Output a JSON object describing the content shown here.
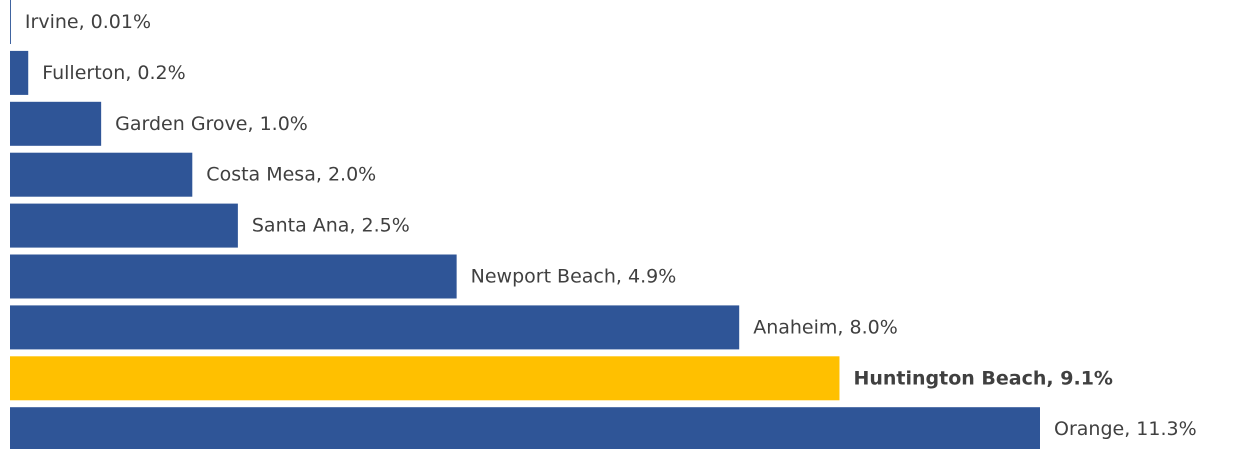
{
  "chart_data": {
    "type": "hbar",
    "categories": [
      "Irvine",
      "Fullerton",
      "Garden Grove",
      "Costa Mesa",
      "Santa Ana",
      "Newport Beach",
      "Anaheim",
      "Huntington Beach",
      "Orange"
    ],
    "values": [
      0.01,
      0.2,
      1.0,
      2.0,
      2.5,
      4.9,
      8.0,
      9.1,
      11.3
    ],
    "value_labels": [
      "0.01%",
      "0.2%",
      "1.0%",
      "2.0%",
      "2.5%",
      "4.9%",
      "8.0%",
      "9.1%",
      "11.3%"
    ],
    "label_separator": ", ",
    "color": "#2f5597",
    "colors": [
      "#2f5597",
      "#2f5597",
      "#2f5597",
      "#2f5597",
      "#2f5597",
      "#2f5597",
      "#2f5597",
      "#ffc000",
      "#2f5597"
    ],
    "xlim": [
      0,
      11.3
    ]
  }
}
